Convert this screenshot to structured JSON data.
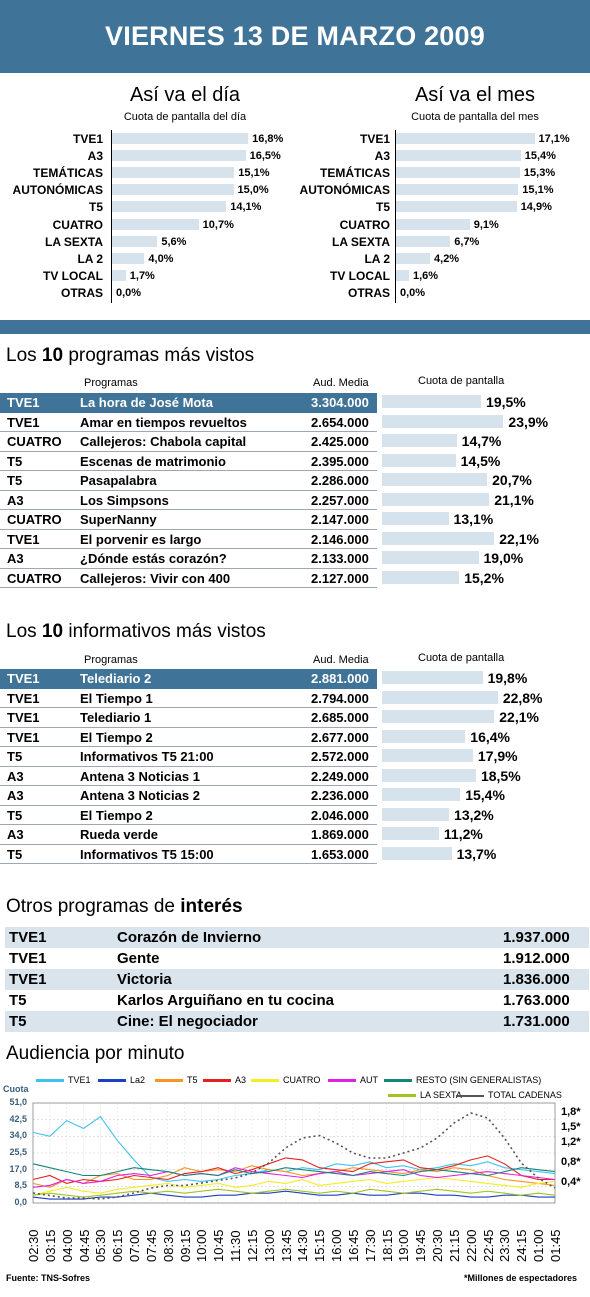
{
  "header": {
    "title": "VIERNES 13 DE MARZO 2009"
  },
  "day": {
    "title": "Así va el día",
    "subtitle": "Cuota de pantalla del día",
    "items": [
      {
        "label": "TVE1",
        "value": 16.8,
        "text": "16,8%"
      },
      {
        "label": "A3",
        "value": 16.5,
        "text": "16,5%"
      },
      {
        "label": "TEMÁTICAS",
        "value": 15.1,
        "text": "15,1%"
      },
      {
        "label": "AUTONÓMICAS",
        "value": 15.0,
        "text": "15,0%"
      },
      {
        "label": "T5",
        "value": 14.1,
        "text": "14,1%"
      },
      {
        "label": "CUATRO",
        "value": 10.7,
        "text": "10,7%"
      },
      {
        "label": "LA SEXTA",
        "value": 5.6,
        "text": "5,6%"
      },
      {
        "label": "LA 2",
        "value": 4.0,
        "text": "4,0%"
      },
      {
        "label": "TV LOCAL",
        "value": 1.7,
        "text": "1,7%"
      },
      {
        "label": "OTRAS",
        "value": 0.0,
        "text": "0,0%"
      }
    ]
  },
  "month": {
    "title": "Así va el mes",
    "subtitle": "Cuota de pantalla del mes",
    "items": [
      {
        "label": "TVE1",
        "value": 17.1,
        "text": "17,1%"
      },
      {
        "label": "A3",
        "value": 15.4,
        "text": "15,4%"
      },
      {
        "label": "TEMÁTICAS",
        "value": 15.3,
        "text": "15,3%"
      },
      {
        "label": "AUTONÓMICAS",
        "value": 15.1,
        "text": "15,1%"
      },
      {
        "label": "T5",
        "value": 14.9,
        "text": "14,9%"
      },
      {
        "label": "CUATRO",
        "value": 9.1,
        "text": "9,1%"
      },
      {
        "label": "LA SEXTA",
        "value": 6.7,
        "text": "6,7%"
      },
      {
        "label": "LA 2",
        "value": 4.2,
        "text": "4,2%"
      },
      {
        "label": "TV LOCAL",
        "value": 1.6,
        "text": "1,6%"
      },
      {
        "label": "OTRAS",
        "value": 0.0,
        "text": "0,0%"
      }
    ]
  },
  "programas": {
    "title_pre": "Los ",
    "title_num": "10",
    "title_post": " programas más vistos",
    "col_program": "Programas",
    "col_aud": "Aud. Media",
    "col_share": "Cuota de pantalla",
    "rows": [
      {
        "channel": "TVE1",
        "name": "La hora de José Mota",
        "aud": "3.304.000",
        "share": 19.5,
        "share_text": "19,5%"
      },
      {
        "channel": "TVE1",
        "name": "Amar en tiempos revueltos",
        "aud": "2.654.000",
        "share": 23.9,
        "share_text": "23,9%"
      },
      {
        "channel": "CUATRO",
        "name": "Callejeros:  Chabola capital",
        "aud": "2.425.000",
        "share": 14.7,
        "share_text": "14,7%"
      },
      {
        "channel": "T5",
        "name": "Escenas de matrimonio",
        "aud": "2.395.000",
        "share": 14.5,
        "share_text": "14,5%"
      },
      {
        "channel": "T5",
        "name": "Pasapalabra",
        "aud": "2.286.000",
        "share": 20.7,
        "share_text": "20,7%"
      },
      {
        "channel": "A3",
        "name": "Los Simpsons",
        "aud": "2.257.000",
        "share": 21.1,
        "share_text": "21,1%"
      },
      {
        "channel": "CUATRO",
        "name": "SuperNanny",
        "aud": "2.147.000",
        "share": 13.1,
        "share_text": "13,1%"
      },
      {
        "channel": "TVE1",
        "name": "El porvenir es largo",
        "aud": "2.146.000",
        "share": 22.1,
        "share_text": "22,1%"
      },
      {
        "channel": "A3",
        "name": "¿Dónde estás corazón?",
        "aud": "2.133.000",
        "share": 19.0,
        "share_text": "19,0%"
      },
      {
        "channel": "CUATRO",
        "name": "Callejeros:  Vivir con 400",
        "aud": "2.127.000",
        "share": 15.2,
        "share_text": "15,2%"
      }
    ]
  },
  "informativos": {
    "title_pre": "Los ",
    "title_num": "10",
    "title_post": " informativos más vistos",
    "col_program": "Programas",
    "col_aud": "Aud. Media",
    "col_share": "Cuota de pantalla",
    "rows": [
      {
        "channel": "TVE1",
        "name": "Telediario 2",
        "aud": "2.881.000",
        "share": 19.8,
        "share_text": "19,8%"
      },
      {
        "channel": "TVE1",
        "name": "El Tiempo 1",
        "aud": "2.794.000",
        "share": 22.8,
        "share_text": "22,8%"
      },
      {
        "channel": "TVE1",
        "name": "Telediario 1",
        "aud": "2.685.000",
        "share": 22.1,
        "share_text": "22,1%"
      },
      {
        "channel": "TVE1",
        "name": "El Tiempo 2",
        "aud": "2.677.000",
        "share": 16.4,
        "share_text": "16,4%"
      },
      {
        "channel": "T5",
        "name": "Informativos T5 21:00",
        "aud": "2.572.000",
        "share": 17.9,
        "share_text": "17,9%"
      },
      {
        "channel": "A3",
        "name": "Antena 3 Noticias 1",
        "aud": "2.249.000",
        "share": 18.5,
        "share_text": "18,5%"
      },
      {
        "channel": "A3",
        "name": "Antena 3 Noticias 2",
        "aud": "2.236.000",
        "share": 15.4,
        "share_text": "15,4%"
      },
      {
        "channel": "T5",
        "name": "El Tiempo 2",
        "aud": "2.046.000",
        "share": 13.2,
        "share_text": "13,2%"
      },
      {
        "channel": "A3",
        "name": "Rueda verde",
        "aud": "1.869.000",
        "share": 11.2,
        "share_text": "11,2%"
      },
      {
        "channel": "T5",
        "name": "Informativos T5 15:00",
        "aud": "1.653.000",
        "share": 13.7,
        "share_text": "13,7%"
      }
    ]
  },
  "otros": {
    "title_pre": "Otros programas de ",
    "title_bold": "interés",
    "rows": [
      {
        "channel": "TVE1",
        "name": "Corazón de Invierno",
        "aud": "1.937.000"
      },
      {
        "channel": "TVE1",
        "name": "Gente",
        "aud": "1.912.000"
      },
      {
        "channel": "TVE1",
        "name": "Victoria",
        "aud": "1.836.000"
      },
      {
        "channel": "T5",
        "name": "Karlos Arguiñano en tu cocina",
        "aud": "1.763.000"
      },
      {
        "channel": "T5",
        "name": "Cine:  El negociador",
        "aud": "1.731.000"
      }
    ]
  },
  "chart_data": {
    "type": "line",
    "title": "Audiencia por minuto",
    "ylabel": "Cuota",
    "yticks": [
      "51,0",
      "42,5",
      "34,0",
      "25,5",
      "17,0",
      "8,5",
      "0,0"
    ],
    "ylim": [
      0,
      51
    ],
    "y2ticks": [
      "1,8*",
      "1,5*",
      "1,2*",
      "0,8*",
      "0,4*"
    ],
    "y2lim": [
      0,
      2.0
    ],
    "x": [
      "02:30",
      "03:15",
      "04:00",
      "04:45",
      "05:30",
      "06:15",
      "07:00",
      "07:45",
      "08:30",
      "09:15",
      "10:00",
      "10:45",
      "11:30",
      "12:15",
      "13:00",
      "13:45",
      "14:30",
      "15:15",
      "16:00",
      "16:45",
      "17:30",
      "18:15",
      "19:00",
      "19:45",
      "20:30",
      "21:15",
      "22:00",
      "22:45",
      "23:30",
      "24:15",
      "01:00",
      "01:45"
    ],
    "series": [
      {
        "name": "TVE1",
        "color": "#3fc3ec",
        "values": [
          36,
          34,
          42,
          38,
          44,
          32,
          22,
          13,
          11,
          12,
          11,
          12,
          14,
          15,
          17,
          16,
          18,
          17,
          20,
          19,
          21,
          18,
          19,
          17,
          18,
          20,
          19,
          21,
          18,
          17,
          16,
          15
        ]
      },
      {
        "name": "La2",
        "color": "#1b3fc2",
        "values": [
          3,
          2,
          2,
          2,
          3,
          3,
          4,
          5,
          4,
          3,
          3,
          4,
          4,
          5,
          5,
          6,
          5,
          4,
          4,
          5,
          4,
          4,
          5,
          5,
          4,
          4,
          3,
          3,
          4,
          4,
          3,
          3
        ]
      },
      {
        "name": "T5",
        "color": "#f79422",
        "values": [
          10,
          8,
          12,
          10,
          14,
          15,
          12,
          12,
          14,
          18,
          16,
          17,
          16,
          19,
          17,
          16,
          14,
          15,
          16,
          18,
          17,
          16,
          15,
          17,
          16,
          18,
          17,
          14,
          12,
          11,
          10,
          9
        ]
      },
      {
        "name": "A3",
        "color": "#e42121",
        "values": [
          12,
          14,
          10,
          12,
          11,
          12,
          14,
          13,
          12,
          15,
          16,
          18,
          15,
          17,
          20,
          23,
          22,
          18,
          17,
          16,
          20,
          21,
          22,
          18,
          17,
          19,
          22,
          24,
          20,
          14,
          12,
          12
        ]
      },
      {
        "name": "CUATRO",
        "color": "#f7ec1f",
        "values": [
          4,
          6,
          8,
          6,
          5,
          7,
          8,
          9,
          10,
          8,
          9,
          10,
          8,
          9,
          11,
          10,
          12,
          9,
          10,
          11,
          12,
          10,
          11,
          12,
          13,
          12,
          11,
          10,
          9,
          8,
          10,
          11
        ]
      },
      {
        "name": "AUT",
        "color": "#e21ee3",
        "values": [
          8,
          9,
          12,
          10,
          11,
          14,
          15,
          14,
          16,
          14,
          15,
          14,
          18,
          16,
          15,
          14,
          13,
          15,
          16,
          14,
          15,
          16,
          17,
          14,
          13,
          14,
          15,
          16,
          15,
          14,
          13,
          12
        ]
      },
      {
        "name": "RESTO (SIN GENERALISTAS)",
        "color": "#168579",
        "values": [
          20,
          18,
          16,
          14,
          14,
          16,
          18,
          17,
          16,
          14,
          15,
          14,
          17,
          15,
          16,
          18,
          17,
          16,
          15,
          14,
          16,
          15,
          14,
          16,
          17,
          16,
          15,
          14,
          16,
          18,
          17,
          16
        ]
      },
      {
        "name": "LA SEXTA",
        "color": "#a2c41e",
        "values": [
          4,
          5,
          4,
          3,
          4,
          5,
          6,
          5,
          6,
          5,
          6,
          7,
          6,
          5,
          6,
          7,
          6,
          5,
          6,
          5,
          7,
          6,
          5,
          6,
          7,
          6,
          5,
          6,
          5,
          4,
          5,
          4
        ]
      },
      {
        "name": "TOTAL CADENAS",
        "color": "#555555",
        "axis": "right",
        "values": [
          0.2,
          0.15,
          0.1,
          0.1,
          0.08,
          0.12,
          0.2,
          0.3,
          0.35,
          0.35,
          0.4,
          0.45,
          0.5,
          0.6,
          0.8,
          1.1,
          1.3,
          1.35,
          1.2,
          1.0,
          0.9,
          0.9,
          1.0,
          1.1,
          1.3,
          1.6,
          1.8,
          1.7,
          1.3,
          0.8,
          0.5,
          0.3
        ]
      }
    ]
  },
  "footer": {
    "source": "Fuente: TNS-Sofres",
    "note": "*Millones de espectadores"
  }
}
